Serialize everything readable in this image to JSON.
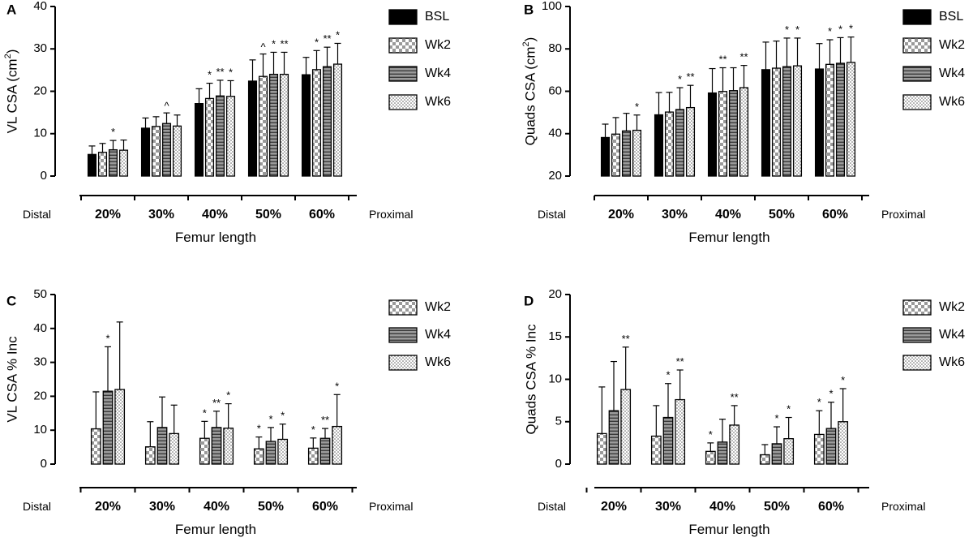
{
  "chart_data": [
    {
      "type": "bar",
      "panel": "A",
      "ylabel": "VL CSA (cm²)",
      "xlabel": "Femur length",
      "x_left_label": "Distal",
      "x_right_label": "Proximal",
      "categories": [
        "20%",
        "30%",
        "40%",
        "50%",
        "60%"
      ],
      "ylim": [
        0,
        40
      ],
      "yticks": [
        0,
        10,
        20,
        30,
        40
      ],
      "series": [
        {
          "name": "BSL",
          "pattern": "solid",
          "values": [
            5.1,
            11.3,
            17.1,
            22.4,
            23.9
          ],
          "errors": [
            2.0,
            2.4,
            3.5,
            5.0,
            4.1
          ]
        },
        {
          "name": "Wk2",
          "pattern": "checker",
          "values": [
            5.6,
            11.7,
            18.3,
            23.5,
            25.1
          ],
          "errors": [
            2.1,
            2.3,
            3.6,
            5.3,
            4.5
          ]
        },
        {
          "name": "Wk4",
          "pattern": "stripes",
          "values": [
            6.2,
            12.4,
            18.9,
            24.0,
            25.8
          ],
          "errors": [
            2.2,
            2.5,
            3.7,
            5.2,
            4.6
          ]
        },
        {
          "name": "Wk6",
          "pattern": "dots",
          "values": [
            6.1,
            11.8,
            18.8,
            24.0,
            26.4
          ],
          "errors": [
            2.4,
            2.6,
            3.7,
            5.2,
            4.9
          ]
        }
      ],
      "annotations": [
        {
          "category": 0,
          "series": 2,
          "text": "*"
        },
        {
          "category": 1,
          "series": 2,
          "text": "^"
        },
        {
          "category": 2,
          "series": 1,
          "text": "*"
        },
        {
          "category": 2,
          "series": 2,
          "text": "**"
        },
        {
          "category": 2,
          "series": 3,
          "text": "*"
        },
        {
          "category": 3,
          "series": 1,
          "text": "^"
        },
        {
          "category": 3,
          "series": 2,
          "text": "*"
        },
        {
          "category": 3,
          "series": 3,
          "text": "**"
        },
        {
          "category": 4,
          "series": 1,
          "text": "*"
        },
        {
          "category": 4,
          "series": 2,
          "text": "**"
        },
        {
          "category": 4,
          "series": 3,
          "text": "*"
        }
      ]
    },
    {
      "type": "bar",
      "panel": "B",
      "ylabel": "Quads CSA (cm²)",
      "xlabel": "Femur length",
      "x_left_label": "Distal",
      "x_right_label": "Proximal",
      "categories": [
        "20%",
        "30%",
        "40%",
        "50%",
        "60%"
      ],
      "ylim": [
        20,
        100
      ],
      "yticks": [
        20,
        40,
        60,
        80,
        100
      ],
      "series": [
        {
          "name": "BSL",
          "pattern": "solid",
          "values": [
            38.2,
            48.9,
            59.2,
            70.2,
            70.5
          ],
          "errors": [
            6.3,
            10.5,
            11.5,
            13.0,
            12.0
          ]
        },
        {
          "name": "Wk2",
          "pattern": "checker",
          "values": [
            39.8,
            50.2,
            59.9,
            70.9,
            72.7
          ],
          "errors": [
            7.8,
            9.3,
            11.2,
            12.8,
            11.6
          ]
        },
        {
          "name": "Wk4",
          "pattern": "stripes",
          "values": [
            41.3,
            51.4,
            60.3,
            71.6,
            73.2
          ],
          "errors": [
            8.3,
            10.3,
            10.8,
            13.5,
            12.1
          ]
        },
        {
          "name": "Wk6",
          "pattern": "dots",
          "values": [
            41.6,
            52.3,
            61.7,
            72.0,
            73.6
          ],
          "errors": [
            7.2,
            10.5,
            10.5,
            13.1,
            12.0
          ]
        }
      ],
      "annotations": [
        {
          "category": 0,
          "series": 3,
          "text": "*"
        },
        {
          "category": 1,
          "series": 2,
          "text": "*"
        },
        {
          "category": 1,
          "series": 3,
          "text": "**"
        },
        {
          "category": 2,
          "series": 1,
          "text": "**"
        },
        {
          "category": 2,
          "series": 3,
          "text": "**"
        },
        {
          "category": 3,
          "series": 2,
          "text": "*"
        },
        {
          "category": 3,
          "series": 3,
          "text": "*"
        },
        {
          "category": 4,
          "series": 1,
          "text": "*"
        },
        {
          "category": 4,
          "series": 2,
          "text": "*"
        },
        {
          "category": 4,
          "series": 3,
          "text": "*"
        }
      ]
    },
    {
      "type": "bar",
      "panel": "C",
      "ylabel": "VL CSA % Inc",
      "xlabel": "Femur length",
      "x_left_label": "Distal",
      "x_right_label": "Proximal",
      "categories": [
        "20%",
        "30%",
        "40%",
        "50%",
        "60%"
      ],
      "ylim": [
        0,
        50
      ],
      "yticks": [
        0,
        10,
        20,
        30,
        40,
        50
      ],
      "series": [
        {
          "name": "Wk2",
          "pattern": "checker",
          "values": [
            10.4,
            5.1,
            7.6,
            4.5,
            4.7
          ],
          "errors": [
            10.9,
            7.4,
            5.0,
            3.5,
            3.0
          ]
        },
        {
          "name": "Wk4",
          "pattern": "stripes",
          "values": [
            21.5,
            10.8,
            10.8,
            6.7,
            7.6
          ],
          "errors": [
            13.1,
            9.0,
            4.8,
            4.1,
            2.9
          ]
        },
        {
          "name": "Wk6",
          "pattern": "dots",
          "values": [
            22.0,
            9.0,
            10.6,
            7.3,
            11.1
          ],
          "errors": [
            19.9,
            8.4,
            7.2,
            4.5,
            9.4
          ]
        }
      ],
      "annotations": [
        {
          "category": 0,
          "series": 1,
          "text": "*"
        },
        {
          "category": 2,
          "series": 0,
          "text": "*"
        },
        {
          "category": 2,
          "series": 1,
          "text": "**"
        },
        {
          "category": 2,
          "series": 2,
          "text": "*"
        },
        {
          "category": 3,
          "series": 0,
          "text": "*"
        },
        {
          "category": 3,
          "series": 1,
          "text": "*"
        },
        {
          "category": 3,
          "series": 2,
          "text": "*"
        },
        {
          "category": 4,
          "series": 0,
          "text": "*"
        },
        {
          "category": 4,
          "series": 1,
          "text": "**"
        },
        {
          "category": 4,
          "series": 2,
          "text": "*"
        }
      ]
    },
    {
      "type": "bar",
      "panel": "D",
      "ylabel": "Quads CSA % Inc",
      "xlabel": "Femur length",
      "x_left_label": "Distal",
      "x_right_label": "Proximal",
      "categories": [
        "20%",
        "30%",
        "40%",
        "50%",
        "60%"
      ],
      "ylim": [
        0,
        20
      ],
      "yticks": [
        0,
        5,
        10,
        15,
        20
      ],
      "series": [
        {
          "name": "Wk2",
          "pattern": "checker",
          "values": [
            3.6,
            3.3,
            1.5,
            1.1,
            3.5
          ],
          "errors": [
            5.5,
            3.6,
            1.0,
            1.2,
            2.8
          ]
        },
        {
          "name": "Wk4",
          "pattern": "stripes",
          "values": [
            6.3,
            5.5,
            2.6,
            2.4,
            4.2
          ],
          "errors": [
            5.8,
            4.0,
            2.7,
            2.0,
            3.1
          ]
        },
        {
          "name": "Wk6",
          "pattern": "dots",
          "values": [
            8.8,
            7.6,
            4.6,
            3.0,
            5.0
          ],
          "errors": [
            5.0,
            3.5,
            2.3,
            2.5,
            3.9
          ]
        }
      ],
      "annotations": [
        {
          "category": 0,
          "series": 2,
          "text": "**"
        },
        {
          "category": 1,
          "series": 1,
          "text": "*"
        },
        {
          "category": 1,
          "series": 2,
          "text": "**"
        },
        {
          "category": 2,
          "series": 0,
          "text": "*"
        },
        {
          "category": 2,
          "series": 2,
          "text": "**"
        },
        {
          "category": 3,
          "series": 1,
          "text": "*"
        },
        {
          "category": 3,
          "series": 2,
          "text": "*"
        },
        {
          "category": 4,
          "series": 0,
          "text": "*"
        },
        {
          "category": 4,
          "series": 1,
          "text": "*"
        },
        {
          "category": 4,
          "series": 2,
          "text": "*"
        }
      ]
    }
  ]
}
